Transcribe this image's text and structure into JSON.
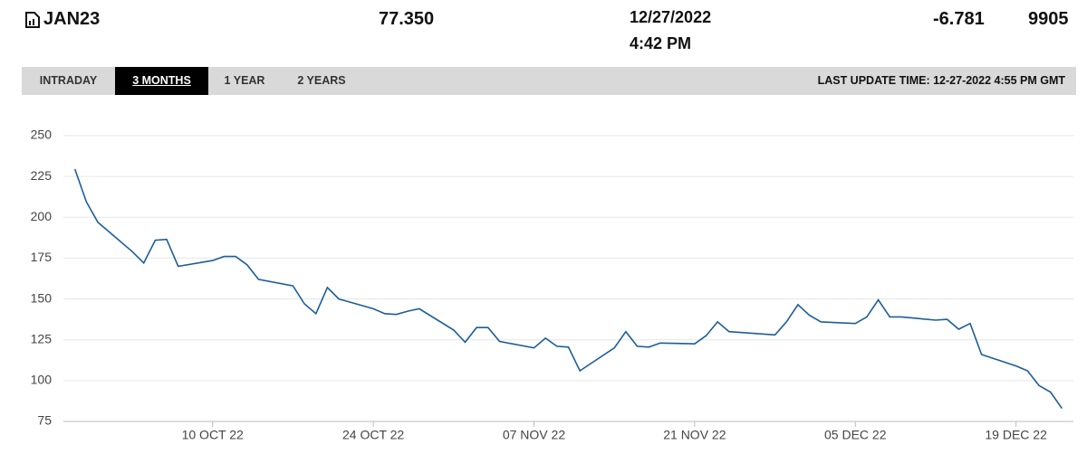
{
  "header": {
    "symbol": "JAN23",
    "price": "77.350",
    "date": "12/27/2022",
    "time": "4:42 PM",
    "change": "-6.781",
    "volume": "9905"
  },
  "tabs": [
    "INTRADAY",
    "3 MONTHS",
    "1 YEAR",
    "2 YEARS"
  ],
  "active_tab": 1,
  "last_update": "LAST UPDATE TIME: 12-27-2022 4:55 PM GMT",
  "chart_data": {
    "type": "line",
    "x": [
      "2022-09-28",
      "2022-09-29",
      "2022-09-30",
      "2022-10-03",
      "2022-10-04",
      "2022-10-05",
      "2022-10-06",
      "2022-10-07",
      "2022-10-10",
      "2022-10-11",
      "2022-10-12",
      "2022-10-13",
      "2022-10-14",
      "2022-10-17",
      "2022-10-18",
      "2022-10-19",
      "2022-10-20",
      "2022-10-21",
      "2022-10-24",
      "2022-10-25",
      "2022-10-26",
      "2022-10-27",
      "2022-10-28",
      "2022-10-31",
      "2022-11-01",
      "2022-11-02",
      "2022-11-03",
      "2022-11-04",
      "2022-11-07",
      "2022-11-08",
      "2022-11-09",
      "2022-11-10",
      "2022-11-11",
      "2022-11-14",
      "2022-11-15",
      "2022-11-16",
      "2022-11-17",
      "2022-11-18",
      "2022-11-21",
      "2022-11-22",
      "2022-11-23",
      "2022-11-24",
      "2022-11-28",
      "2022-11-29",
      "2022-11-30",
      "2022-12-01",
      "2022-12-02",
      "2022-12-05",
      "2022-12-06",
      "2022-12-07",
      "2022-12-08",
      "2022-12-09",
      "2022-12-12",
      "2022-12-13",
      "2022-12-14",
      "2022-12-15",
      "2022-12-16",
      "2022-12-19",
      "2022-12-20",
      "2022-12-21",
      "2022-12-22",
      "2022-12-23"
    ],
    "values": [
      229.5,
      209.5,
      197,
      179,
      172,
      186,
      186.5,
      170,
      173.5,
      176,
      176,
      171,
      162,
      158,
      147,
      141,
      157,
      150,
      144,
      141,
      140.5,
      142.5,
      144,
      131,
      123.5,
      132.5,
      132.5,
      124,
      120,
      126,
      121,
      120.5,
      106,
      120,
      130,
      121,
      120.5,
      123,
      122.5,
      127.5,
      136,
      130,
      128,
      136,
      146.5,
      140,
      136,
      135,
      139,
      149.5,
      139,
      139,
      137,
      137.5,
      131.5,
      135,
      116,
      109,
      106,
      97,
      93,
      83
    ],
    "color": "#1c5d99",
    "xlim": [
      "2022-09-27",
      "2022-12-24"
    ],
    "xticks": [
      {
        "value": "2022-10-10",
        "label": "10 OCT 22"
      },
      {
        "value": "2022-10-24",
        "label": "24 OCT 22"
      },
      {
        "value": "2022-11-07",
        "label": "07 NOV 22"
      },
      {
        "value": "2022-11-21",
        "label": "21 NOV 22"
      },
      {
        "value": "2022-12-05",
        "label": "05 DEC 22"
      },
      {
        "value": "2022-12-19",
        "label": "19 DEC 22"
      }
    ],
    "ylim": [
      75,
      250
    ],
    "yticks": [
      75,
      100,
      125,
      150,
      175,
      200,
      225,
      250
    ],
    "grid": true
  }
}
